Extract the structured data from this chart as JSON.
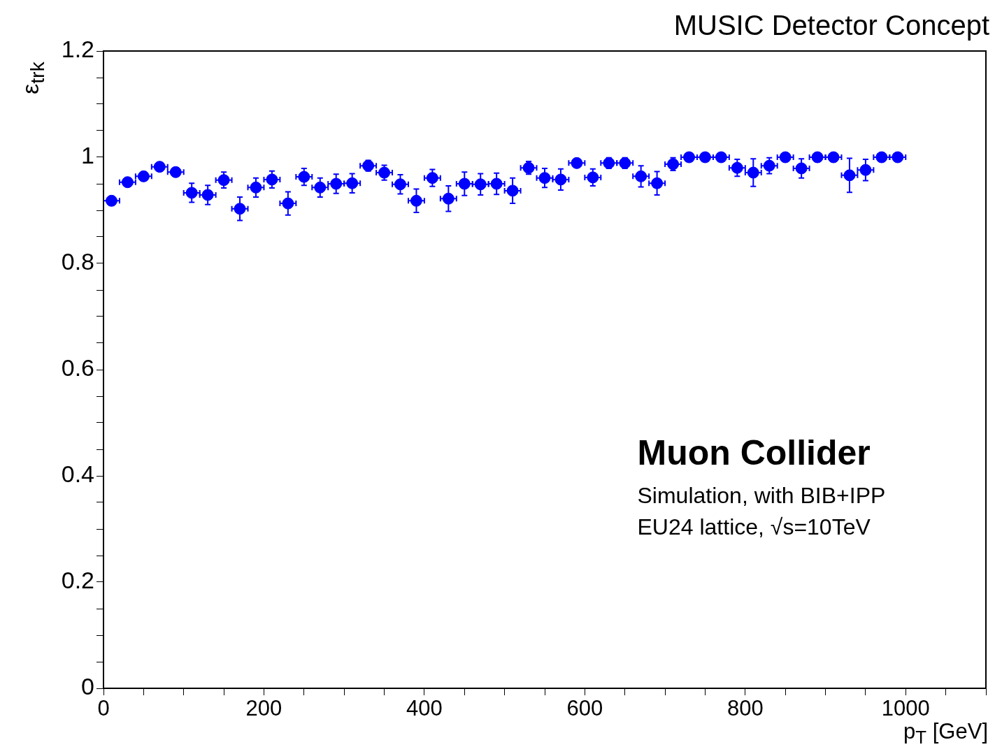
{
  "chart_data": {
    "type": "scatter",
    "title": "MUSIC Detector Concept",
    "xlabel": "p$_{T}$ [GeV]",
    "ylabel": "ε$_{trk}$",
    "annotations": [
      "Muon Collider",
      "Simulation, with BIB+IPP",
      "EU24 lattice, √s=10TeV"
    ],
    "x": [
      10,
      30,
      50,
      70,
      90,
      110,
      130,
      150,
      170,
      190,
      210,
      230,
      250,
      270,
      290,
      310,
      330,
      350,
      370,
      390,
      410,
      430,
      450,
      470,
      490,
      510,
      530,
      550,
      570,
      590,
      610,
      630,
      650,
      670,
      690,
      710,
      730,
      750,
      770,
      790,
      810,
      830,
      850,
      870,
      890,
      910,
      930,
      950,
      970,
      990
    ],
    "values": [
      0.918,
      0.953,
      0.964,
      0.982,
      0.972,
      0.933,
      0.929,
      0.957,
      0.903,
      0.943,
      0.958,
      0.913,
      0.963,
      0.943,
      0.95,
      0.951,
      0.984,
      0.971,
      0.949,
      0.918,
      0.961,
      0.922,
      0.95,
      0.949,
      0.95,
      0.937,
      0.98,
      0.961,
      0.958,
      0.989,
      0.962,
      0.989,
      0.989,
      0.964,
      0.951,
      0.987,
      1.0,
      1.0,
      1.0,
      0.98,
      0.971,
      0.984,
      1.0,
      0.979,
      1.0,
      1.0,
      0.966,
      0.976,
      1.0,
      1.0
    ],
    "errors": [
      0.008,
      0.008,
      0.008,
      0.008,
      0.008,
      0.018,
      0.018,
      0.015,
      0.022,
      0.018,
      0.016,
      0.022,
      0.016,
      0.018,
      0.018,
      0.018,
      0.01,
      0.014,
      0.018,
      0.022,
      0.016,
      0.024,
      0.022,
      0.02,
      0.02,
      0.024,
      0.012,
      0.018,
      0.02,
      0.008,
      0.016,
      0.01,
      0.01,
      0.02,
      0.022,
      0.012,
      null,
      null,
      null,
      0.016,
      0.026,
      0.015,
      null,
      0.018,
      null,
      null,
      0.032,
      0.02,
      null,
      null
    ],
    "xerrors": [
      10,
      10,
      10,
      10,
      10,
      10,
      10,
      10,
      10,
      10,
      10,
      10,
      10,
      10,
      10,
      10,
      10,
      10,
      10,
      10,
      10,
      10,
      10,
      10,
      10,
      10,
      10,
      10,
      10,
      10,
      10,
      10,
      10,
      10,
      10,
      10,
      10,
      10,
      10,
      10,
      10,
      10,
      10,
      10,
      10,
      10,
      10,
      10,
      10,
      10
    ],
    "color": "#0000ff",
    "legend": false,
    "xlim": [
      0,
      1100
    ],
    "xticks": [
      0,
      {
        "value": 50,
        "label": null
      },
      {
        "value": 100,
        "label": null
      },
      {
        "value": 150,
        "label": null
      },
      200,
      {
        "value": 250,
        "label": null
      },
      {
        "value": 300,
        "label": null
      },
      {
        "value": 350,
        "label": null
      },
      400,
      {
        "value": 450,
        "label": null
      },
      {
        "value": 500,
        "label": null
      },
      {
        "value": 550,
        "label": null
      },
      600,
      {
        "value": 650,
        "label": null
      },
      {
        "value": 700,
        "label": null
      },
      {
        "value": 750,
        "label": null
      },
      800,
      {
        "value": 850,
        "label": null
      },
      {
        "value": 900,
        "label": null
      },
      {
        "value": 950,
        "label": null
      },
      1000,
      {
        "value": 1050,
        "label": null
      },
      {
        "value": 1100,
        "label": null
      }
    ],
    "ylim": [
      0,
      1.2
    ],
    "yticks": [
      0,
      {
        "value": 0.05,
        "label": null
      },
      {
        "value": 0.1,
        "label": null
      },
      {
        "value": 0.15,
        "label": null
      },
      0.2,
      {
        "value": 0.25,
        "label": null
      },
      {
        "value": 0.3,
        "label": null
      },
      {
        "value": 0.35,
        "label": null
      },
      0.4,
      {
        "value": 0.45,
        "label": null
      },
      {
        "value": 0.5,
        "label": null
      },
      {
        "value": 0.55,
        "label": null
      },
      0.6,
      {
        "value": 0.65,
        "label": null
      },
      {
        "value": 0.7,
        "label": null
      },
      {
        "value": 0.75,
        "label": null
      },
      0.8,
      {
        "value": 0.85,
        "label": null
      },
      {
        "value": 0.9,
        "label": null
      },
      {
        "value": 0.95,
        "label": null
      },
      1,
      {
        "value": 1.05,
        "label": null
      },
      {
        "value": 1.1,
        "label": null
      },
      {
        "value": 1.15,
        "label": null
      },
      1.2
    ]
  }
}
